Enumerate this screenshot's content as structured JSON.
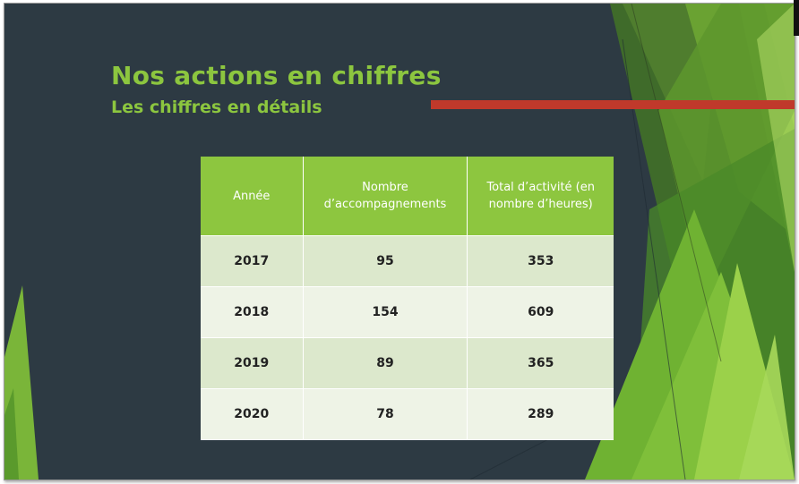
{
  "slide": {
    "title": "Nos actions en chiffres",
    "subtitle": "Les chiffres en détails"
  },
  "table": {
    "headers": [
      "Année",
      "Nombre d’accompagnements",
      "Total d’activité (en nombre d’heures)"
    ],
    "rows": [
      [
        "2017",
        "95",
        "353"
      ],
      [
        "2018",
        "154",
        "609"
      ],
      [
        "2019",
        "89",
        "365"
      ],
      [
        "2020",
        "78",
        "289"
      ]
    ]
  },
  "colors": {
    "background": "#2d3a43",
    "accent_green": "#8cc63f",
    "accent_red": "#c0392b",
    "row_light": "#eef3e6",
    "row_dark": "#dce8cc"
  }
}
